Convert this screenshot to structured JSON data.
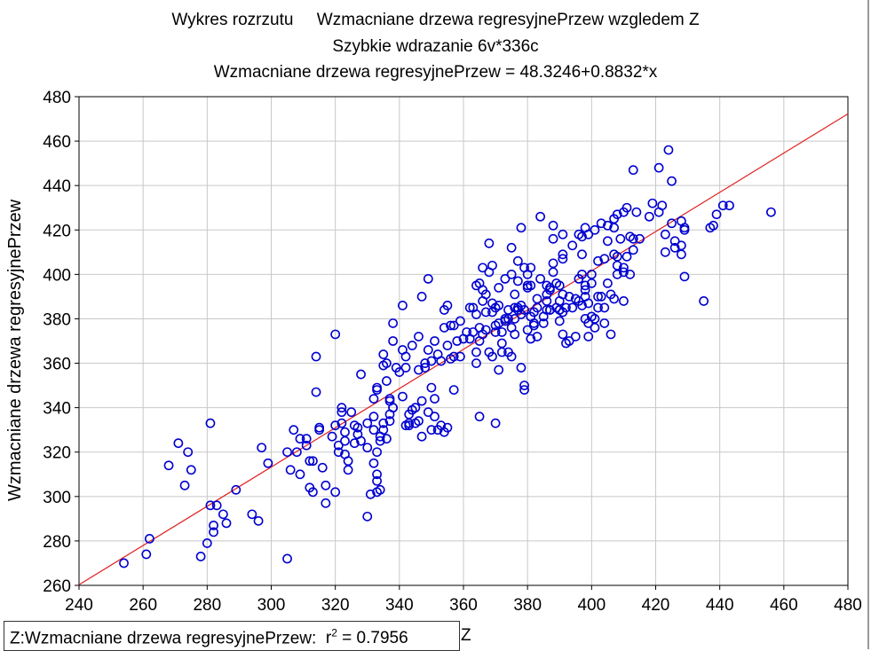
{
  "chart_data": {
    "type": "scatter",
    "title": "Wykres rozrzutu     Wzmacniane drzewa regresyjnePrzew wzgledem Z",
    "subtitle": "Szybkie wdrazanie 6v*336c",
    "equation": "Wzmacniane drzewa regresyjnePrzew = 48.3246+0.8832*x",
    "ylabel": "Wzmacniane drzewa regresyjnePrzew",
    "stat_label": "Z:Wzmacniane drzewa regresyjnePrzew:",
    "r2_label": "r",
    "r2_sup": "2",
    "r2_value": " = 0.7956",
    "stat_tail": "Z",
    "xlim": [
      240,
      480
    ],
    "ylim": [
      260,
      480
    ],
    "xticks": [
      "240",
      "260",
      "280",
      "300",
      "320",
      "340",
      "360",
      "380",
      "400",
      "420",
      "440",
      "460",
      "480"
    ],
    "yticks": [
      "260",
      "280",
      "300",
      "320",
      "340",
      "360",
      "380",
      "400",
      "420",
      "440",
      "460",
      "480"
    ],
    "grid": true,
    "regression": {
      "intercept": 48.3246,
      "slope": 0.8832
    },
    "colors": {
      "points": "#0000d0",
      "line": "#e02020",
      "grid": "#c8c8c8"
    },
    "points": [
      [
        254,
        270
      ],
      [
        261,
        274
      ],
      [
        262,
        281
      ],
      [
        268,
        314
      ],
      [
        271,
        324
      ],
      [
        273,
        305
      ],
      [
        274,
        320
      ],
      [
        275,
        312
      ],
      [
        281,
        333
      ],
      [
        281,
        296
      ],
      [
        282,
        287
      ],
      [
        282,
        284
      ],
      [
        283,
        296
      ],
      [
        278,
        273
      ],
      [
        280,
        279
      ],
      [
        285,
        292
      ],
      [
        286,
        288
      ],
      [
        289,
        303
      ],
      [
        294,
        292
      ],
      [
        296,
        289
      ],
      [
        297,
        322
      ],
      [
        299,
        315
      ],
      [
        305,
        320
      ],
      [
        305,
        272
      ],
      [
        306,
        312
      ],
      [
        307,
        330
      ],
      [
        308,
        320
      ],
      [
        309,
        310
      ],
      [
        309,
        326
      ],
      [
        311,
        326
      ],
      [
        311,
        323
      ],
      [
        312,
        316
      ],
      [
        312,
        304
      ],
      [
        313,
        316
      ],
      [
        313,
        302
      ],
      [
        314,
        363
      ],
      [
        314,
        347
      ],
      [
        315,
        331
      ],
      [
        315,
        330
      ],
      [
        316,
        313
      ],
      [
        317,
        297
      ],
      [
        317,
        305
      ],
      [
        319,
        327
      ],
      [
        320,
        302
      ],
      [
        320,
        332
      ],
      [
        320,
        373
      ],
      [
        321,
        320
      ],
      [
        321,
        323
      ],
      [
        322,
        333
      ],
      [
        322,
        340
      ],
      [
        322,
        338
      ],
      [
        323,
        325
      ],
      [
        323,
        319
      ],
      [
        323,
        329
      ],
      [
        324,
        316
      ],
      [
        324,
        312
      ],
      [
        325,
        338
      ],
      [
        326,
        324
      ],
      [
        326,
        332
      ],
      [
        327,
        331
      ],
      [
        327,
        328
      ],
      [
        328,
        355
      ],
      [
        328,
        325
      ],
      [
        330,
        322
      ],
      [
        330,
        291
      ],
      [
        330,
        333
      ],
      [
        331,
        301
      ],
      [
        332,
        344
      ],
      [
        332,
        336
      ],
      [
        332,
        315
      ],
      [
        332,
        330
      ],
      [
        333,
        348
      ],
      [
        333,
        349
      ],
      [
        333,
        310
      ],
      [
        333,
        307
      ],
      [
        333,
        302
      ],
      [
        333,
        320
      ],
      [
        334,
        303
      ],
      [
        334,
        327
      ],
      [
        334,
        325
      ],
      [
        335,
        330
      ],
      [
        335,
        333
      ],
      [
        335,
        364
      ],
      [
        335,
        359
      ],
      [
        336,
        352
      ],
      [
        336,
        326
      ],
      [
        336,
        360
      ],
      [
        337,
        343
      ],
      [
        337,
        337
      ],
      [
        337,
        334
      ],
      [
        337,
        344
      ],
      [
        338,
        340
      ],
      [
        338,
        340
      ],
      [
        338,
        370
      ],
      [
        338,
        378
      ],
      [
        339,
        358
      ],
      [
        340,
        356
      ],
      [
        341,
        366
      ],
      [
        341,
        386
      ],
      [
        341,
        345
      ],
      [
        342,
        332
      ],
      [
        342,
        358
      ],
      [
        342,
        363
      ],
      [
        343,
        337
      ],
      [
        343,
        333
      ],
      [
        343,
        332
      ],
      [
        344,
        339
      ],
      [
        344,
        368
      ],
      [
        345,
        333
      ],
      [
        345,
        340
      ],
      [
        346,
        334
      ],
      [
        346,
        357
      ],
      [
        346,
        372
      ],
      [
        347,
        327
      ],
      [
        347,
        343
      ],
      [
        347,
        390
      ],
      [
        348,
        358
      ],
      [
        348,
        360
      ],
      [
        349,
        338
      ],
      [
        349,
        366
      ],
      [
        349,
        398
      ],
      [
        350,
        330
      ],
      [
        350,
        361
      ],
      [
        350,
        349
      ],
      [
        351,
        370
      ],
      [
        351,
        336
      ],
      [
        351,
        344
      ],
      [
        352,
        330
      ],
      [
        352,
        364
      ],
      [
        353,
        332
      ],
      [
        353,
        361
      ],
      [
        354,
        329
      ],
      [
        354,
        376
      ],
      [
        354,
        384
      ],
      [
        355,
        331
      ],
      [
        355,
        386
      ],
      [
        355,
        368
      ],
      [
        356,
        362
      ],
      [
        356,
        377
      ],
      [
        357,
        348
      ],
      [
        357,
        363
      ],
      [
        357,
        377
      ],
      [
        358,
        370
      ],
      [
        359,
        363
      ],
      [
        359,
        379
      ],
      [
        360,
        371
      ],
      [
        361,
        374
      ],
      [
        362,
        385
      ],
      [
        362,
        371
      ],
      [
        363,
        385
      ],
      [
        363,
        374
      ],
      [
        364,
        382
      ],
      [
        364,
        395
      ],
      [
        364,
        365
      ],
      [
        364,
        360
      ],
      [
        365,
        336
      ],
      [
        365,
        370
      ],
      [
        365,
        376
      ],
      [
        365,
        396
      ],
      [
        366,
        388
      ],
      [
        366,
        373
      ],
      [
        366,
        393
      ],
      [
        366,
        403
      ],
      [
        367,
        383
      ],
      [
        367,
        391
      ],
      [
        367,
        375
      ],
      [
        368,
        414
      ],
      [
        368,
        365
      ],
      [
        368,
        401
      ],
      [
        369,
        404
      ],
      [
        369,
        387
      ],
      [
        369,
        383
      ],
      [
        369,
        363
      ],
      [
        370,
        333
      ],
      [
        370,
        377
      ],
      [
        370,
        374
      ],
      [
        370,
        385
      ],
      [
        371,
        386
      ],
      [
        371,
        357
      ],
      [
        371,
        394
      ],
      [
        371,
        378
      ],
      [
        372,
        365
      ],
      [
        372,
        369
      ],
      [
        372,
        374
      ],
      [
        373,
        380
      ],
      [
        373,
        379
      ],
      [
        373,
        398
      ],
      [
        374,
        365
      ],
      [
        374,
        384
      ],
      [
        374,
        380
      ],
      [
        375,
        400
      ],
      [
        375,
        376
      ],
      [
        375,
        412
      ],
      [
        375,
        363
      ],
      [
        376,
        380
      ],
      [
        376,
        391
      ],
      [
        376,
        385
      ],
      [
        376,
        373
      ],
      [
        377,
        397
      ],
      [
        377,
        384
      ],
      [
        377,
        385
      ],
      [
        377,
        406
      ],
      [
        378,
        382
      ],
      [
        378,
        386
      ],
      [
        378,
        358
      ],
      [
        378,
        421
      ],
      [
        379,
        348
      ],
      [
        379,
        403
      ],
      [
        379,
        384
      ],
      [
        379,
        350
      ],
      [
        380,
        400
      ],
      [
        380,
        375
      ],
      [
        380,
        395
      ],
      [
        380,
        394
      ],
      [
        381,
        381
      ],
      [
        381,
        371
      ],
      [
        381,
        395
      ],
      [
        381,
        403
      ],
      [
        382,
        378
      ],
      [
        382,
        383
      ],
      [
        382,
        377
      ],
      [
        383,
        385
      ],
      [
        383,
        389
      ],
      [
        383,
        372
      ],
      [
        384,
        398
      ],
      [
        384,
        426
      ],
      [
        385,
        378
      ],
      [
        385,
        381
      ],
      [
        386,
        391
      ],
      [
        386,
        384
      ],
      [
        386,
        388
      ],
      [
        386,
        395
      ],
      [
        387,
        393
      ],
      [
        387,
        384
      ],
      [
        387,
        384
      ],
      [
        387,
        394
      ],
      [
        388,
        401
      ],
      [
        388,
        422
      ],
      [
        388,
        416
      ],
      [
        388,
        405
      ],
      [
        389,
        396
      ],
      [
        389,
        385
      ],
      [
        390,
        384
      ],
      [
        390,
        388
      ],
      [
        390,
        384
      ],
      [
        390,
        395
      ],
      [
        390,
        379
      ],
      [
        391,
        409
      ],
      [
        391,
        391
      ],
      [
        391,
        383
      ],
      [
        391,
        407
      ],
      [
        391,
        418
      ],
      [
        391,
        373
      ],
      [
        392,
        385
      ],
      [
        392,
        369
      ],
      [
        393,
        390
      ],
      [
        393,
        370
      ],
      [
        394,
        385
      ],
      [
        394,
        413
      ],
      [
        395,
        372
      ],
      [
        395,
        389
      ],
      [
        396,
        388
      ],
      [
        396,
        398
      ],
      [
        396,
        418
      ],
      [
        397,
        417
      ],
      [
        397,
        400
      ],
      [
        397,
        386
      ],
      [
        397,
        409
      ],
      [
        398,
        421
      ],
      [
        398,
        393
      ],
      [
        398,
        395
      ],
      [
        398,
        390
      ],
      [
        398,
        380
      ],
      [
        399,
        372
      ],
      [
        399,
        387
      ],
      [
        399,
        378
      ],
      [
        399,
        418
      ],
      [
        400,
        400
      ],
      [
        400,
        396
      ],
      [
        400,
        381
      ],
      [
        401,
        380
      ],
      [
        401,
        420
      ],
      [
        401,
        376
      ],
      [
        402,
        390
      ],
      [
        402,
        385
      ],
      [
        402,
        406
      ],
      [
        403,
        390
      ],
      [
        403,
        423
      ],
      [
        404,
        385
      ],
      [
        404,
        407
      ],
      [
        404,
        378
      ],
      [
        405,
        415
      ],
      [
        405,
        422
      ],
      [
        405,
        396
      ],
      [
        406,
        373
      ],
      [
        406,
        391
      ],
      [
        407,
        421
      ],
      [
        407,
        425
      ],
      [
        407,
        389
      ],
      [
        407,
        409
      ],
      [
        408,
        400
      ],
      [
        408,
        427
      ],
      [
        408,
        404
      ],
      [
        408,
        408
      ],
      [
        409,
        416
      ],
      [
        410,
        401
      ],
      [
        410,
        388
      ],
      [
        410,
        403
      ],
      [
        410,
        428
      ],
      [
        411,
        408
      ],
      [
        411,
        430
      ],
      [
        412,
        400
      ],
      [
        412,
        417
      ],
      [
        413,
        447
      ],
      [
        413,
        416
      ],
      [
        413,
        411
      ],
      [
        414,
        428
      ],
      [
        415,
        416
      ],
      [
        418,
        426
      ],
      [
        419,
        432
      ],
      [
        421,
        428
      ],
      [
        421,
        448
      ],
      [
        422,
        431
      ],
      [
        423,
        410
      ],
      [
        423,
        418
      ],
      [
        424,
        456
      ],
      [
        425,
        423
      ],
      [
        425,
        442
      ],
      [
        426,
        415
      ],
      [
        426,
        412
      ],
      [
        428,
        424
      ],
      [
        428,
        409
      ],
      [
        428,
        413
      ],
      [
        429,
        421
      ],
      [
        429,
        420
      ],
      [
        429,
        399
      ],
      [
        435,
        388
      ],
      [
        437,
        421
      ],
      [
        438,
        422
      ],
      [
        439,
        427
      ],
      [
        441,
        431
      ],
      [
        443,
        431
      ],
      [
        456,
        428
      ]
    ]
  }
}
